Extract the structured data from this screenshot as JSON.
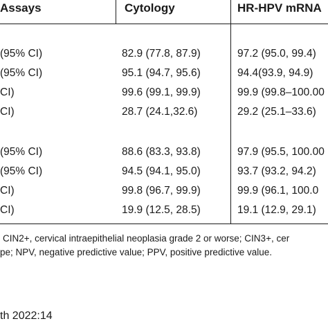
{
  "table": {
    "headers": [
      "Assays",
      "Cytology",
      "HR-HPV mRNA"
    ],
    "rows": [
      [
        "(95% CI)",
        "82.9 (77.8, 87.9)",
        "97.2 (95.0, 99.4)"
      ],
      [
        "(95% CI)",
        "95.1 (94.7, 95.6)",
        "94.4(93.9, 94.9)"
      ],
      [
        "CI)",
        "99.6 (99.1, 99.9)",
        "99.9 (99.8–100.00"
      ],
      [
        "CI)",
        "28.7 (24.1,32.6)",
        "29.2 (25.1–33.6)"
      ],
      [
        "(95% CI)",
        "88.6 (83.3, 93.8)",
        "97.9 (95.5, 100.00"
      ],
      [
        "(95% CI)",
        "94.5 (94.1, 95.0)",
        "93.7 (93.2, 94.2)"
      ],
      [
        "CI)",
        "99.8 (96.7, 99.9)",
        "99.9 (96.1, 100.0"
      ],
      [
        "CI)",
        "19.9 (12.5, 28.5)",
        "19.1 (12.9, 29.1)"
      ]
    ]
  },
  "footnote": {
    "line1": "CIN2+, cervical intraepithelial neoplasia grade 2 or worse; CIN3+, cer",
    "line2": "pe; NPV, negative predictive value; PPV, positive predictive value."
  },
  "citation": "th 2022:14"
}
